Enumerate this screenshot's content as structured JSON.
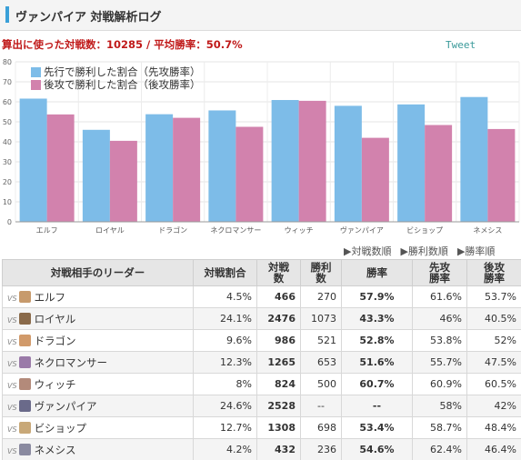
{
  "header": {
    "title": "ヴァンパイア 対戦解析ログ"
  },
  "summary": {
    "text": "算出に使った対戦数：10285 / 平均勝率：50.7%",
    "tweet_label": "Tweet"
  },
  "colors": {
    "first": "#7dbce8",
    "second": "#d282ad",
    "winrate": "#e07800",
    "summary": "#c01a1a"
  },
  "chart_data": {
    "type": "bar",
    "categories": [
      "エルフ",
      "ロイヤル",
      "ドラゴン",
      "ネクロマンサー",
      "ウィッチ",
      "ヴァンパイア",
      "ビショップ",
      "ネメシス"
    ],
    "series": [
      {
        "name": "先行で勝利した割合（先攻勝率）",
        "values": [
          61.6,
          46,
          53.8,
          55.7,
          60.9,
          58,
          58.7,
          62.4
        ]
      },
      {
        "name": "後攻で勝利した割合（後攻勝率）",
        "values": [
          53.7,
          40.5,
          52,
          47.5,
          60.5,
          42,
          48.4,
          46.4
        ]
      }
    ],
    "yticks": [
      0,
      10,
      20,
      30,
      40,
      50,
      60,
      70,
      80
    ],
    "ylim": [
      0,
      80
    ],
    "grid": true,
    "legend": "top-left"
  },
  "sort_links": [
    "▶対戦数順",
    "▶勝利数順",
    "▶勝率順"
  ],
  "table": {
    "headers": [
      "対戦相手のリーダー",
      "対戦割合",
      "対戦数",
      "勝利数",
      "勝率",
      "先攻勝率",
      "後攻勝率"
    ],
    "vs_label": "VS",
    "rows": [
      {
        "leader": "エルフ",
        "share": "4.5%",
        "matches": "466",
        "wins": "270",
        "winrate": "57.9%",
        "first": "61.6%",
        "second": "53.7%",
        "icon": "elf-icon",
        "icon_color": "#c79a6c"
      },
      {
        "leader": "ロイヤル",
        "share": "24.1%",
        "matches": "2476",
        "wins": "1073",
        "winrate": "43.3%",
        "first": "46%",
        "second": "40.5%",
        "icon": "royal-icon",
        "icon_color": "#8a6a4a"
      },
      {
        "leader": "ドラゴン",
        "share": "9.6%",
        "matches": "986",
        "wins": "521",
        "winrate": "52.8%",
        "first": "53.8%",
        "second": "52%",
        "icon": "dragon-icon",
        "icon_color": "#d19a6a"
      },
      {
        "leader": "ネクロマンサー",
        "share": "12.3%",
        "matches": "1265",
        "wins": "653",
        "winrate": "51.6%",
        "first": "55.7%",
        "second": "47.5%",
        "icon": "necromancer-icon",
        "icon_color": "#9a7aa8"
      },
      {
        "leader": "ウィッチ",
        "share": "8%",
        "matches": "824",
        "wins": "500",
        "winrate": "60.7%",
        "first": "60.9%",
        "second": "60.5%",
        "icon": "witch-icon",
        "icon_color": "#b38a7a"
      },
      {
        "leader": "ヴァンパイア",
        "share": "24.6%",
        "matches": "2528",
        "wins": "--",
        "winrate": "--",
        "first": "58%",
        "second": "42%",
        "icon": "vampire-icon",
        "icon_color": "#6a6a8a"
      },
      {
        "leader": "ビショップ",
        "share": "12.7%",
        "matches": "1308",
        "wins": "698",
        "winrate": "53.4%",
        "first": "58.7%",
        "second": "48.4%",
        "icon": "bishop-icon",
        "icon_color": "#c8a878"
      },
      {
        "leader": "ネメシス",
        "share": "4.2%",
        "matches": "432",
        "wins": "236",
        "winrate": "54.6%",
        "first": "62.4%",
        "second": "46.4%",
        "icon": "nemesis-icon",
        "icon_color": "#8a8aa0"
      }
    ]
  }
}
